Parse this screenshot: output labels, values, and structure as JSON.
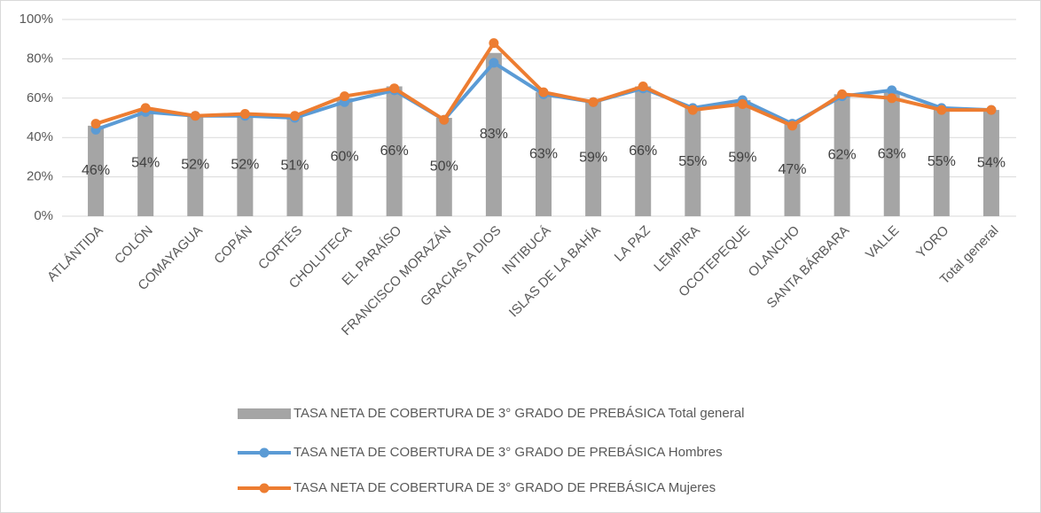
{
  "chart_data": {
    "type": "combo",
    "categories": [
      "ATLÁNTIDA",
      "COLÓN",
      "COMAYAGUA",
      "COPÁN",
      "CORTÉS",
      "CHOLUTECA",
      "EL PARAÍSO",
      "FRANCISCO MORAZÁN",
      "GRACIAS A DIOS",
      "INTIBUCÁ",
      "ISLAS DE LA BAHÍA",
      "LA PAZ",
      "LEMPIRA",
      "OCOTEPEQUE",
      "OLANCHO",
      "SANTA BÁRBARA",
      "VALLE",
      "YORO",
      "Total general"
    ],
    "series": [
      {
        "name": "TASA NETA DE COBERTURA DE 3° GRADO DE PREBÁSICA Total general",
        "type": "bar",
        "color": "#a5a5a5",
        "values": [
          46,
          54,
          52,
          52,
          51,
          60,
          66,
          50,
          83,
          63,
          59,
          66,
          55,
          59,
          47,
          62,
          63,
          55,
          54
        ],
        "value_labels": [
          "46%",
          "54%",
          "52%",
          "52%",
          "51%",
          "60%",
          "66%",
          "50%",
          "83%",
          "63%",
          "59%",
          "66%",
          "55%",
          "59%",
          "47%",
          "62%",
          "63%",
          "55%",
          "54%"
        ]
      },
      {
        "name": "TASA NETA DE COBERTURA DE 3° GRADO DE PREBÁSICA Hombres",
        "type": "line",
        "color": "#5b9bd5",
        "values": [
          44,
          53,
          51,
          51,
          50,
          58,
          64,
          49,
          78,
          62,
          58,
          65,
          55,
          59,
          47,
          61,
          64,
          55,
          54
        ]
      },
      {
        "name": "TASA NETA DE COBERTURA DE 3° GRADO DE PREBÁSICA Mujeres",
        "type": "line",
        "color": "#ed7d31",
        "values": [
          47,
          55,
          51,
          52,
          51,
          61,
          65,
          49,
          88,
          63,
          58,
          66,
          54,
          57,
          46,
          62,
          60,
          54,
          54
        ]
      }
    ],
    "ylim": [
      0,
      100
    ],
    "yticks": [
      {
        "value": 0,
        "label": "0%"
      },
      {
        "value": 20,
        "label": "20%"
      },
      {
        "value": 40,
        "label": "40%"
      },
      {
        "value": 60,
        "label": "60%"
      },
      {
        "value": 80,
        "label": "80%"
      },
      {
        "value": 100,
        "label": "100%"
      }
    ],
    "grid": true
  }
}
